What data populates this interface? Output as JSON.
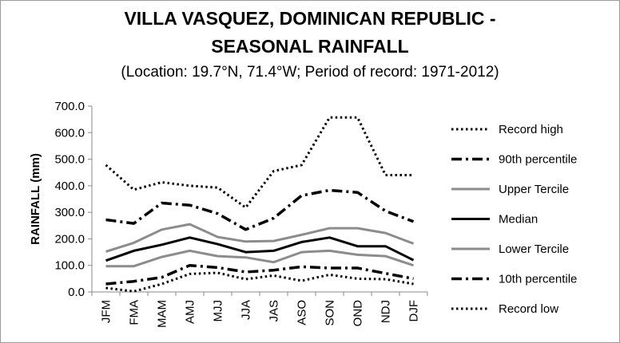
{
  "chart_data": {
    "type": "line",
    "title": "VILLA VASQUEZ, DOMINICAN REPUBLIC -",
    "title_line2": "SEASONAL RAINFALL",
    "subtitle": "(Location: 19.7°N, 71.4°W; Period of record: 1971-2012)",
    "xlabel": "",
    "ylabel": "RAINFALL (mm)",
    "ylim": [
      0,
      700
    ],
    "y_ticks": [
      "700.0",
      "600.0",
      "500.0",
      "400.0",
      "300.0",
      "200.0",
      "100.0",
      "0.0"
    ],
    "categories": [
      "JFM",
      "FMA",
      "MAM",
      "AMJ",
      "MJJ",
      "JJA",
      "JAS",
      "ASO",
      "SON",
      "OND",
      "NDJ",
      "DJF"
    ],
    "legend_position": "right",
    "grid": false,
    "series": [
      {
        "name": "Record high",
        "style": "dotted",
        "color": "#000000",
        "values": [
          478,
          385,
          413,
          400,
          393,
          318,
          455,
          478,
          657,
          657,
          440,
          440
        ]
      },
      {
        "name": "90th percentile",
        "style": "dashdot",
        "color": "#000000",
        "values": [
          272,
          258,
          335,
          327,
          295,
          235,
          278,
          363,
          383,
          375,
          305,
          265
        ]
      },
      {
        "name": "Upper Tercile",
        "style": "solid",
        "color": "#8c8c8c",
        "values": [
          152,
          185,
          235,
          255,
          207,
          190,
          192,
          215,
          240,
          240,
          222,
          182
        ]
      },
      {
        "name": "Median",
        "style": "solid",
        "color": "#000000",
        "values": [
          118,
          155,
          178,
          205,
          180,
          150,
          155,
          188,
          205,
          172,
          172,
          120
        ]
      },
      {
        "name": "Lower Tercile",
        "style": "solid",
        "color": "#8c8c8c",
        "values": [
          97,
          97,
          132,
          155,
          135,
          130,
          112,
          150,
          155,
          140,
          135,
          100
        ]
      },
      {
        "name": "10th percentile",
        "style": "dashdot",
        "color": "#000000",
        "values": [
          30,
          40,
          55,
          100,
          92,
          75,
          82,
          95,
          90,
          90,
          70,
          50
        ]
      },
      {
        "name": "Record low",
        "style": "dotted",
        "color": "#000000",
        "values": [
          15,
          2,
          30,
          68,
          72,
          48,
          62,
          42,
          65,
          50,
          48,
          30
        ]
      }
    ]
  }
}
